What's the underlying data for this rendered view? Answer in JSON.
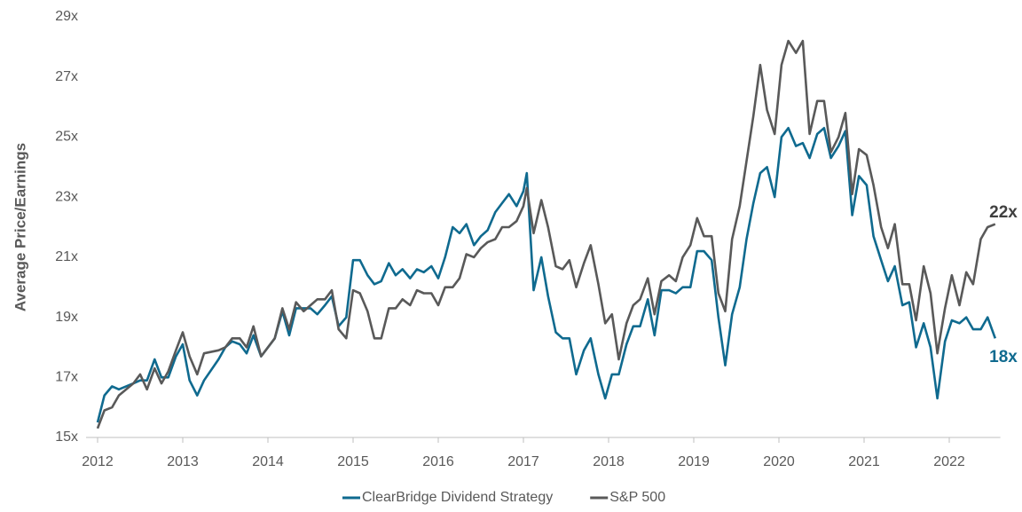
{
  "chart_data": {
    "type": "line",
    "y_label": "Average Price/Earnings",
    "x": [
      2012.0,
      2012.08,
      2012.17,
      2012.25,
      2012.42,
      2012.5,
      2012.58,
      2012.67,
      2012.75,
      2012.83,
      2012.92,
      2013.0,
      2013.08,
      2013.17,
      2013.25,
      2013.42,
      2013.5,
      2013.58,
      2013.67,
      2013.75,
      2013.83,
      2013.92,
      2014.08,
      2014.17,
      2014.25,
      2014.33,
      2014.42,
      2014.5,
      2014.58,
      2014.67,
      2014.75,
      2014.83,
      2014.92,
      2015.0,
      2015.08,
      2015.17,
      2015.25,
      2015.33,
      2015.42,
      2015.5,
      2015.58,
      2015.67,
      2015.75,
      2015.83,
      2015.92,
      2016.0,
      2016.08,
      2016.17,
      2016.25,
      2016.33,
      2016.42,
      2016.5,
      2016.58,
      2016.67,
      2016.75,
      2016.83,
      2016.92,
      2017.0,
      2017.04,
      2017.12,
      2017.21,
      2017.29,
      2017.38,
      2017.46,
      2017.54,
      2017.62,
      2017.71,
      2017.79,
      2017.88,
      2017.96,
      2018.04,
      2018.12,
      2018.21,
      2018.29,
      2018.37,
      2018.46,
      2018.54,
      2018.62,
      2018.71,
      2018.79,
      2018.87,
      2018.96,
      2019.04,
      2019.12,
      2019.21,
      2019.29,
      2019.37,
      2019.45,
      2019.54,
      2019.62,
      2019.7,
      2019.78,
      2019.86,
      2019.95,
      2020.03,
      2020.11,
      2020.2,
      2020.28,
      2020.36,
      2020.45,
      2020.53,
      2020.61,
      2020.7,
      2020.78,
      2020.86,
      2020.94,
      2021.03,
      2021.11,
      2021.2,
      2021.28,
      2021.36,
      2021.45,
      2021.53,
      2021.61,
      2021.7,
      2021.78,
      2021.86,
      2021.95,
      2022.03,
      2022.12,
      2022.2,
      2022.28,
      2022.37,
      2022.45,
      2022.54
    ],
    "series": [
      {
        "name": "ClearBridge Dividend Strategy",
        "color": "#0f6a8f",
        "values": [
          15.5,
          16.4,
          16.7,
          16.6,
          16.8,
          16.9,
          16.9,
          17.6,
          17.0,
          17.0,
          17.7,
          18.1,
          16.9,
          16.4,
          16.9,
          17.6,
          18.0,
          18.2,
          18.1,
          17.8,
          18.4,
          17.7,
          18.3,
          19.2,
          18.4,
          19.3,
          19.3,
          19.3,
          19.1,
          19.4,
          19.7,
          18.7,
          19.0,
          20.9,
          20.9,
          20.4,
          20.1,
          20.2,
          20.8,
          20.4,
          20.6,
          20.3,
          20.6,
          20.5,
          20.7,
          20.3,
          21.0,
          22.0,
          21.8,
          22.1,
          21.4,
          21.7,
          21.9,
          22.5,
          22.8,
          23.1,
          22.7,
          23.2,
          23.8,
          19.9,
          21.0,
          19.7,
          18.5,
          18.3,
          18.3,
          17.1,
          17.9,
          18.3,
          17.1,
          16.3,
          17.1,
          17.1,
          18.1,
          18.7,
          18.7,
          19.6,
          18.4,
          19.9,
          19.9,
          19.8,
          20.0,
          20.0,
          21.2,
          21.2,
          20.9,
          19.0,
          17.4,
          19.1,
          20.0,
          21.6,
          22.8,
          23.8,
          24.0,
          23.0,
          25.0,
          25.3,
          24.7,
          24.8,
          24.3,
          25.1,
          25.3,
          24.3,
          24.7,
          25.2,
          22.4,
          23.7,
          23.4,
          21.7,
          20.9,
          20.2,
          20.7,
          19.4,
          19.5,
          18.0,
          18.8,
          18.0,
          16.3,
          18.2,
          18.9,
          18.8,
          19.0,
          18.6,
          18.6,
          19.0,
          18.3
        ]
      },
      {
        "name": "S&P 500",
        "color": "#595959",
        "values": [
          15.3,
          15.9,
          16.0,
          16.4,
          16.8,
          17.1,
          16.6,
          17.3,
          16.8,
          17.2,
          17.9,
          18.5,
          17.7,
          17.1,
          17.8,
          17.9,
          18.0,
          18.3,
          18.3,
          18.0,
          18.7,
          17.7,
          18.3,
          19.3,
          18.6,
          19.5,
          19.2,
          19.4,
          19.6,
          19.6,
          19.9,
          18.6,
          18.3,
          19.9,
          19.8,
          19.2,
          18.3,
          18.3,
          19.3,
          19.3,
          19.6,
          19.4,
          19.9,
          19.8,
          19.8,
          19.4,
          20.0,
          20.0,
          20.3,
          21.1,
          21.0,
          21.3,
          21.5,
          21.6,
          22.0,
          22.0,
          22.2,
          22.7,
          23.3,
          21.8,
          22.9,
          22.0,
          20.7,
          20.6,
          20.9,
          20.0,
          20.8,
          21.4,
          20.1,
          18.8,
          19.1,
          17.6,
          18.8,
          19.4,
          19.6,
          20.3,
          19.1,
          20.2,
          20.4,
          20.2,
          21.0,
          21.4,
          22.3,
          21.7,
          21.7,
          19.8,
          19.2,
          21.6,
          22.7,
          24.2,
          25.7,
          27.4,
          25.9,
          25.1,
          27.4,
          28.2,
          27.8,
          28.2,
          25.1,
          26.2,
          26.2,
          24.5,
          25.0,
          25.8,
          23.1,
          24.6,
          24.4,
          23.4,
          22.0,
          21.3,
          22.1,
          20.1,
          20.1,
          18.9,
          20.7,
          19.8,
          17.8,
          19.3,
          20.4,
          19.4,
          20.5,
          20.1,
          21.6,
          22.0,
          22.1
        ]
      }
    ],
    "annotations": [
      {
        "text": "22x",
        "color": "#404040"
      },
      {
        "text": "18x",
        "color": "#0f6a8f"
      }
    ],
    "xlim": [
      2012,
      2022.6
    ],
    "xticks": [
      2012,
      2013,
      2014,
      2015,
      2016,
      2017,
      2018,
      2019,
      2020,
      2021,
      2022
    ],
    "ylim": [
      15,
      29
    ],
    "yticks": [
      {
        "value": 15,
        "label": "15x"
      },
      {
        "value": 17,
        "label": "17x"
      },
      {
        "value": 19,
        "label": "19x"
      },
      {
        "value": 21,
        "label": "21x"
      },
      {
        "value": 23,
        "label": "23x"
      },
      {
        "value": 25,
        "label": "25x"
      },
      {
        "value": 27,
        "label": "27x"
      },
      {
        "value": 29,
        "label": "29x"
      }
    ],
    "grid": false,
    "legend": "bottom"
  }
}
